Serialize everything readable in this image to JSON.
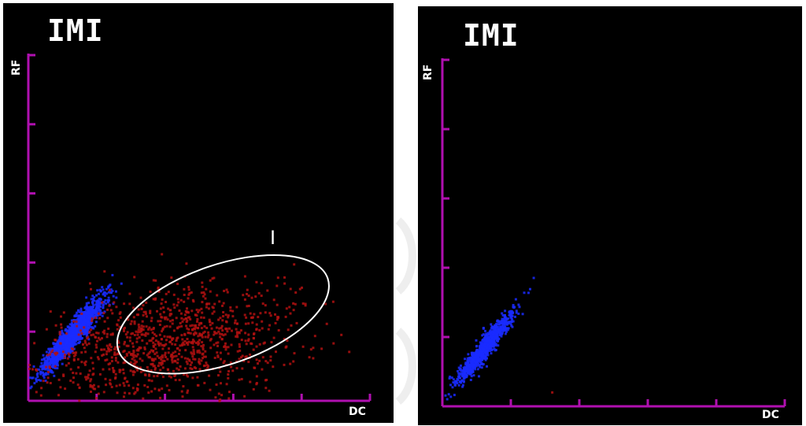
{
  "colors": {
    "background": "#000000",
    "axis": "#b010b0",
    "text": "#ffffff",
    "gate": "#ffffff",
    "lymph_cluster": "#1a2cff",
    "imi_population": "#b01010"
  },
  "chart_data": [
    {
      "type": "scatter",
      "title": "IMI",
      "xlabel": "DC",
      "ylabel": "RF",
      "xlim": [
        0,
        5
      ],
      "ylim": [
        0,
        5
      ],
      "x_ticks": 5,
      "y_ticks": 5,
      "grid": false,
      "series": [
        {
          "color": "#1a2cff",
          "cluster": {
            "cx": 0.62,
            "cy": 0.95,
            "sx": 0.22,
            "sy": 0.26,
            "rho": 0.93,
            "n": 1500
          }
        },
        {
          "color": "#b01010",
          "cluster": {
            "cx": 2.05,
            "cy": 0.85,
            "sx": 0.95,
            "sy": 0.42,
            "rho": 0.35,
            "n": 1100
          }
        }
      ],
      "annotations": [
        {
          "text": "I",
          "shape": "ellipse",
          "cx": 2.85,
          "cy": 1.25,
          "rx": 1.62,
          "ry": 0.72,
          "angle_deg": 19
        }
      ]
    },
    {
      "type": "scatter",
      "title": "IMI",
      "xlabel": "DC",
      "ylabel": "RF",
      "xlim": [
        0,
        5
      ],
      "ylim": [
        0,
        5
      ],
      "x_ticks": 5,
      "y_ticks": 5,
      "grid": false,
      "series": [
        {
          "color": "#1a2cff",
          "cluster": {
            "cx": 0.6,
            "cy": 0.85,
            "sx": 0.2,
            "sy": 0.25,
            "rho": 0.94,
            "n": 900
          }
        },
        {
          "color": "#b01010",
          "cluster": {
            "cx": 1.6,
            "cy": 0.22,
            "sx": 0.01,
            "sy": 0.01,
            "rho": 0,
            "n": 1
          }
        }
      ],
      "annotations": []
    }
  ]
}
